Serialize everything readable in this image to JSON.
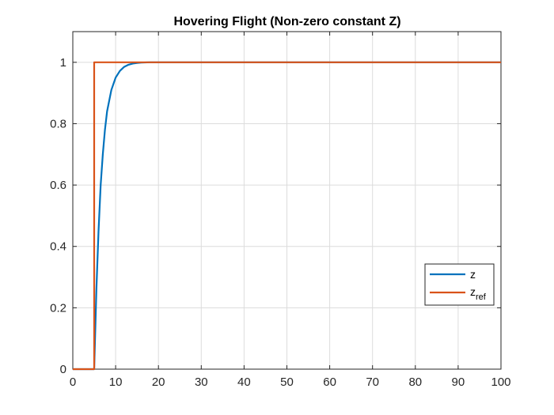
{
  "chart_data": {
    "type": "line",
    "title": "Hovering Flight (Non-zero constant Z)",
    "xlabel": "",
    "ylabel": "",
    "xlim": [
      0,
      100
    ],
    "ylim": [
      0,
      1.1
    ],
    "x_ticks": [
      0,
      10,
      20,
      30,
      40,
      50,
      60,
      70,
      80,
      90,
      100
    ],
    "y_ticks": [
      0,
      0.2,
      0.4,
      0.6,
      0.8,
      1
    ],
    "x_tick_labels": [
      "0",
      "10",
      "20",
      "30",
      "40",
      "50",
      "60",
      "70",
      "80",
      "90",
      "100"
    ],
    "y_tick_labels": [
      "0",
      "0.2",
      "0.4",
      "0.6",
      "0.8",
      "1"
    ],
    "grid": true,
    "legend_position": "right",
    "series": [
      {
        "name": "z",
        "color": "#0072BD",
        "x": [
          0,
          5,
          5.5,
          6,
          6.5,
          7,
          7.5,
          8,
          9,
          10,
          11,
          12,
          13,
          14,
          15,
          16,
          18,
          20,
          25,
          100
        ],
        "y": [
          0,
          0,
          0.26,
          0.45,
          0.6,
          0.7,
          0.78,
          0.84,
          0.91,
          0.95,
          0.972,
          0.985,
          0.992,
          0.996,
          0.998,
          0.999,
          1,
          1,
          1,
          1
        ]
      },
      {
        "name": "z_ref",
        "color": "#D95319",
        "x": [
          0,
          5,
          5,
          100
        ],
        "y": [
          0,
          0,
          1,
          1
        ]
      }
    ]
  }
}
